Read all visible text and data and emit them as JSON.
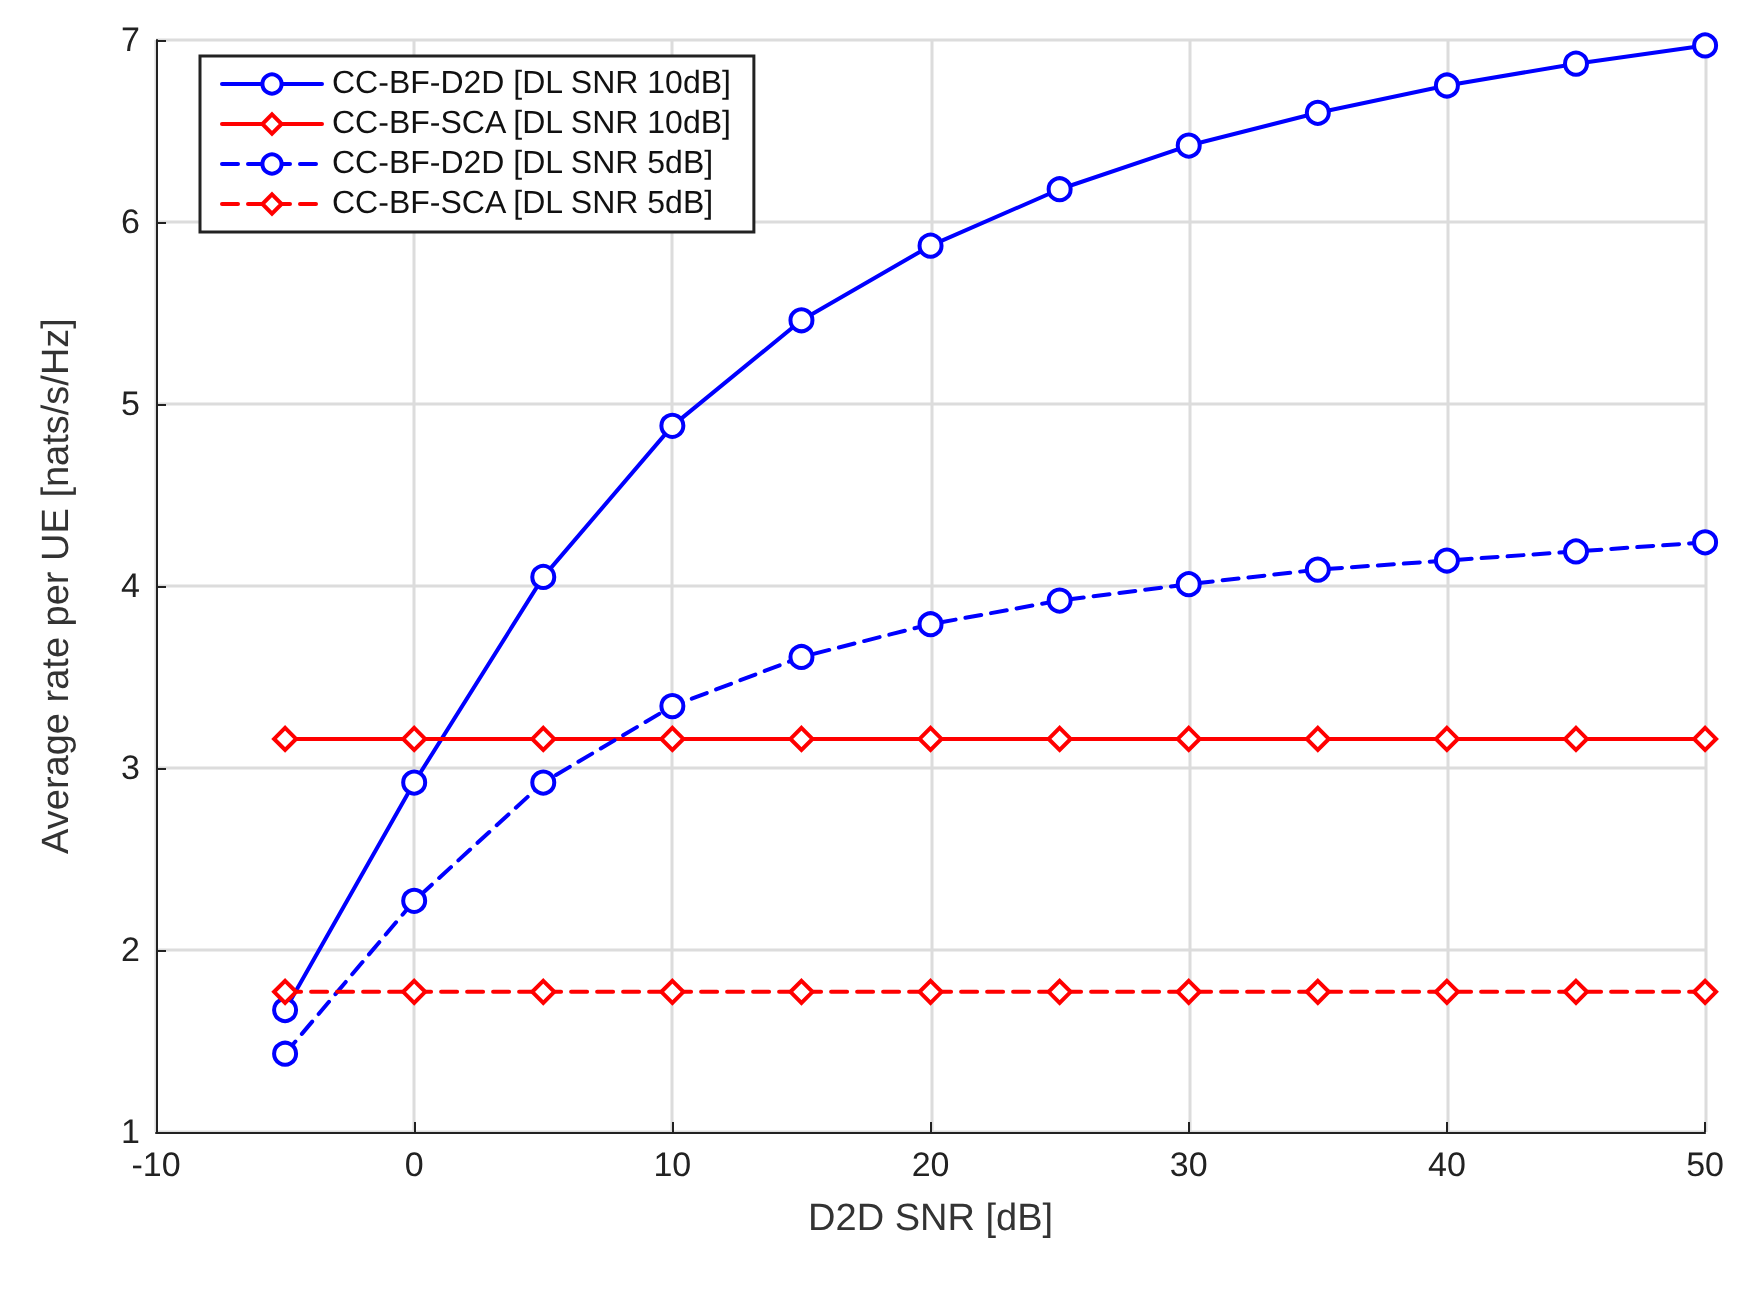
{
  "chart_data": {
    "type": "line",
    "xlabel": "D2D SNR [dB]",
    "ylabel": "Average rate per UE [nats/s/Hz]",
    "x": [
      -5,
      0,
      5,
      10,
      15,
      20,
      25,
      30,
      35,
      40,
      45,
      50
    ],
    "xlim": [
      -10,
      50
    ],
    "xticks": [
      -10,
      0,
      10,
      20,
      30,
      40,
      50
    ],
    "ylim": [
      1,
      7
    ],
    "yticks": [
      1,
      2,
      3,
      4,
      5,
      6,
      7
    ],
    "grid": true,
    "legend": "top left",
    "series": [
      {
        "name": "CC-BF-D2D [DL SNR 10dB]",
        "color": "#0000ff",
        "marker": "circle",
        "line_style": "solid",
        "values": [
          1.67,
          2.92,
          4.05,
          4.88,
          5.46,
          5.87,
          6.18,
          6.42,
          6.6,
          6.75,
          6.87,
          6.97
        ]
      },
      {
        "name": "CC-BF-SCA [DL SNR 10dB]",
        "color": "#ff0000",
        "marker": "diamond",
        "line_style": "solid",
        "values": [
          3.16,
          3.16,
          3.16,
          3.16,
          3.16,
          3.16,
          3.16,
          3.16,
          3.16,
          3.16,
          3.16,
          3.16
        ]
      },
      {
        "name": "CC-BF-D2D [DL SNR 5dB]",
        "color": "#0000ff",
        "marker": "circle",
        "line_style": "dashed",
        "values": [
          1.43,
          2.27,
          2.92,
          3.34,
          3.61,
          3.79,
          3.92,
          4.01,
          4.09,
          4.14,
          4.19,
          4.24
        ]
      },
      {
        "name": "CC-BF-SCA [DL SNR 5dB]",
        "color": "#ff0000",
        "marker": "diamond",
        "line_style": "dashed",
        "values": [
          1.77,
          1.77,
          1.77,
          1.77,
          1.77,
          1.77,
          1.77,
          1.77,
          1.77,
          1.77,
          1.77,
          1.77
        ]
      }
    ]
  }
}
